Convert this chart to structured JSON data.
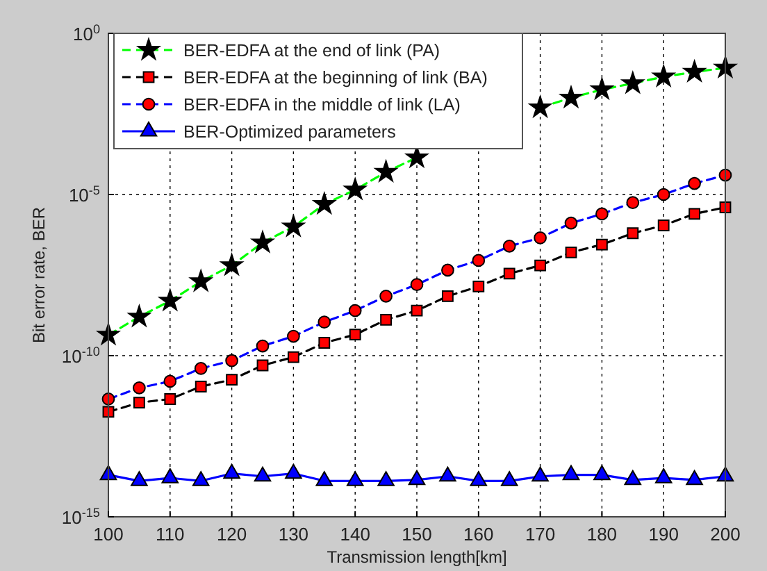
{
  "chart_data": {
    "type": "line",
    "xlabel": "Transmission length[km]",
    "ylabel": "Bit error rate, BER",
    "x": [
      100,
      105,
      110,
      115,
      120,
      125,
      130,
      135,
      140,
      145,
      150,
      155,
      160,
      165,
      170,
      175,
      180,
      185,
      190,
      195,
      200
    ],
    "xlim": [
      100,
      200
    ],
    "xticks": [
      100,
      110,
      120,
      130,
      140,
      150,
      160,
      170,
      180,
      190,
      200
    ],
    "ylim": [
      1e-15,
      1
    ],
    "log": true,
    "yticks": [
      {
        "value": 1e-15,
        "label": "10$^{-15}$"
      },
      {
        "value": 1e-10,
        "label": "10$^{-10}$"
      },
      {
        "value": 1e-05,
        "label": "10$^{-5}$"
      },
      {
        "value": 1,
        "label": "10$^{0}$"
      }
    ],
    "grid": true,
    "legend": "top left",
    "series": [
      {
        "name": "BER-EDFA at the end of link (PA)",
        "color": "#00ff00",
        "marker": "star",
        "line_style": "dashed",
        "values": [
          4.4e-10,
          1.6e-09,
          5e-09,
          2e-08,
          6.3e-08,
          3.2e-07,
          1e-06,
          5e-06,
          1.4e-05,
          5e-05,
          0.00014,
          null,
          null,
          null,
          0.005,
          0.01,
          0.018,
          0.028,
          0.045,
          0.063,
          0.085
        ]
      },
      {
        "name": "BER-EDFA at the beginning of link (BA)",
        "color": "#000000",
        "marker": "square",
        "line_style": "dashed",
        "values": [
          1.8e-12,
          3.5e-12,
          4.5e-12,
          1.1e-11,
          1.8e-11,
          5e-11,
          9e-11,
          2.5e-10,
          4.5e-10,
          1.3e-09,
          2.5e-09,
          7e-09,
          1.4e-08,
          3.5e-08,
          6.3e-08,
          1.6e-07,
          2.8e-07,
          6.3e-07,
          1.1e-06,
          2.5e-06,
          4e-06
        ]
      },
      {
        "name": "BER-EDFA in the middle of link (LA)",
        "color": "#0000ff",
        "marker": "circle",
        "line_style": "dashed",
        "values": [
          4.5e-12,
          1e-11,
          1.6e-11,
          4e-11,
          7e-11,
          2e-10,
          4e-10,
          1.1e-09,
          2.5e-09,
          7e-09,
          1.6e-08,
          4.5e-08,
          9e-08,
          2.5e-07,
          4.5e-07,
          1.3e-06,
          2.5e-06,
          5.6e-06,
          1e-05,
          2.2e-05,
          4e-05
        ]
      },
      {
        "name": "BER-Optimized parameters",
        "color": "#0000ff",
        "marker": "triangle",
        "line_style": "solid",
        "values": [
          2e-14,
          1.3e-14,
          1.6e-14,
          1.3e-14,
          2.2e-14,
          1.8e-14,
          2.2e-14,
          1.3e-14,
          1.3e-14,
          1.3e-14,
          1.4e-14,
          1.8e-14,
          1.3e-14,
          1.3e-14,
          1.8e-14,
          2e-14,
          2e-14,
          1.4e-14,
          1.6e-14,
          1.4e-14,
          1.8e-14
        ]
      }
    ]
  }
}
